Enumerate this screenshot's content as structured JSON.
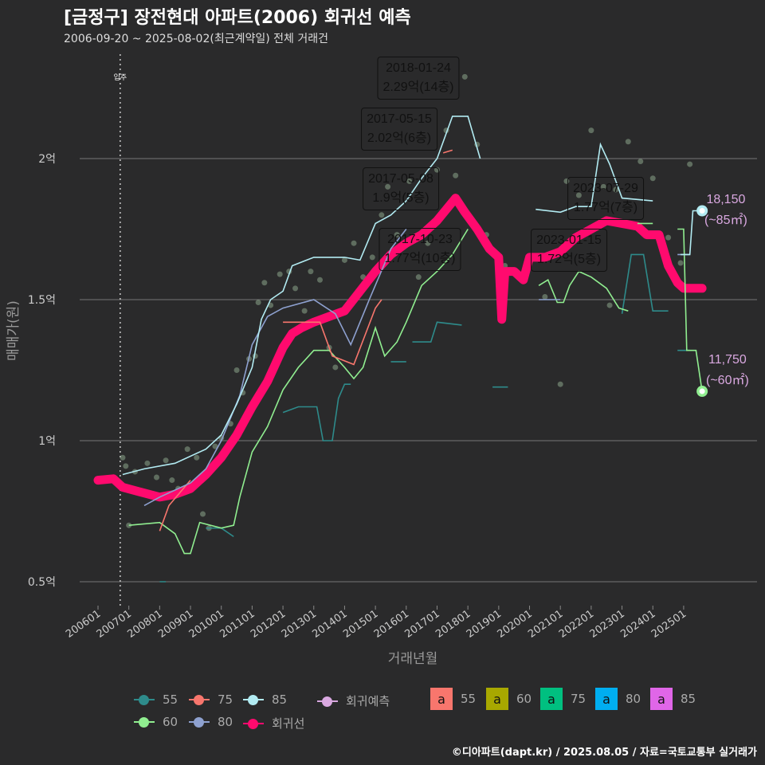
{
  "title": "[금정구] 장전현대 아파트(2006) 회귀선 예측",
  "subtitle": "2006-09-20 ~ 2025-08-02(최근계약일) 전체 거래건",
  "credit": "©디아파트(dapt.kr) / 2025.08.05 / 자료=국토교통부 실거래가",
  "chart_data": {
    "type": "line",
    "xlabel": "거래년월",
    "ylabel": "매매가(원)",
    "xlim": [
      2005.4,
      2027.4
    ],
    "ylim": [
      4200,
      24000
    ],
    "x_ticks": [
      "200601",
      "200701",
      "200801",
      "200901",
      "201001",
      "201101",
      "201201",
      "201301",
      "201401",
      "201501",
      "201601",
      "201701",
      "201801",
      "201901",
      "202001",
      "202101",
      "202201",
      "202301",
      "202401",
      "202501"
    ],
    "y_ticks": [
      {
        "v": 5000,
        "label": "0.5억"
      },
      {
        "v": 10000,
        "label": "1억"
      },
      {
        "v": 15000,
        "label": "1.5억"
      },
      {
        "v": 20000,
        "label": "2억"
      }
    ],
    "move_in": {
      "x": 2006.72,
      "label": "입주"
    },
    "series": [
      {
        "name": "55",
        "color": "#2e8b8b",
        "points": [
          [
            2008.0,
            5000
          ],
          [
            2008.2,
            5000
          ],
          null,
          [
            2009.5,
            6900
          ],
          [
            2010.0,
            6900
          ],
          [
            2010.4,
            6600
          ],
          null,
          [
            2012.0,
            11000
          ],
          [
            2012.5,
            11200
          ],
          [
            2013.1,
            11200
          ],
          [
            2013.3,
            10000
          ],
          [
            2013.6,
            10000
          ],
          [
            2013.8,
            11500
          ],
          [
            2014.0,
            12000
          ],
          [
            2014.2,
            12000
          ],
          null,
          [
            2015.5,
            12800
          ],
          [
            2016.0,
            12800
          ],
          null,
          [
            2016.2,
            13500
          ],
          [
            2016.8,
            13500
          ],
          [
            2017.0,
            14200
          ],
          [
            2017.8,
            14100
          ],
          null,
          [
            2018.8,
            11900
          ],
          [
            2019.3,
            11900
          ],
          null,
          [
            2023.0,
            14500
          ],
          [
            2023.3,
            16600
          ],
          [
            2023.7,
            16600
          ],
          [
            2024.0,
            14600
          ],
          [
            2024.5,
            14600
          ],
          null,
          [
            2024.8,
            13200
          ],
          [
            2025.2,
            13200
          ]
        ]
      },
      {
        "name": "60",
        "color": "#90ee90",
        "points": [
          [
            2007.0,
            7000
          ],
          [
            2008.0,
            7100
          ],
          [
            2008.5,
            6700
          ],
          [
            2008.8,
            6000
          ],
          [
            2009.0,
            6000
          ],
          [
            2009.3,
            7100
          ],
          [
            2010.0,
            6900
          ],
          [
            2010.4,
            7000
          ],
          [
            2010.6,
            8000
          ],
          [
            2011.0,
            9600
          ],
          [
            2011.5,
            10500
          ],
          [
            2012.0,
            11800
          ],
          [
            2012.5,
            12600
          ],
          [
            2013.0,
            13200
          ],
          [
            2013.5,
            13200
          ],
          [
            2014.0,
            12600
          ],
          [
            2014.3,
            12200
          ],
          [
            2014.6,
            12600
          ],
          [
            2015.0,
            14000
          ],
          [
            2015.3,
            13000
          ],
          [
            2015.7,
            13500
          ],
          [
            2016.0,
            14200
          ],
          [
            2016.5,
            15500
          ],
          [
            2017.0,
            16000
          ],
          [
            2017.5,
            16600
          ],
          [
            2018.0,
            17500
          ],
          null,
          [
            2020.3,
            15500
          ],
          [
            2020.6,
            15700
          ],
          [
            2020.9,
            14900
          ],
          [
            2021.1,
            14900
          ],
          [
            2021.3,
            15500
          ],
          [
            2021.6,
            16000
          ],
          [
            2022.0,
            15800
          ],
          [
            2022.5,
            15400
          ],
          [
            2022.9,
            14700
          ],
          [
            2023.2,
            14600
          ],
          null,
          [
            2023.5,
            17700
          ],
          [
            2024.0,
            17700
          ],
          null,
          [
            2024.8,
            17500
          ],
          [
            2025.0,
            17500
          ],
          [
            2025.1,
            13200
          ],
          [
            2025.4,
            13200
          ],
          [
            2025.6,
            11750
          ]
        ]
      },
      {
        "name": "75",
        "color": "#f8766d",
        "points": [
          [
            2008.0,
            6800
          ],
          [
            2008.3,
            7700
          ],
          [
            2009.0,
            8600
          ],
          null,
          [
            2012.0,
            14200
          ],
          [
            2013.2,
            14200
          ],
          [
            2013.6,
            13000
          ],
          [
            2014.3,
            12700
          ],
          [
            2015.0,
            14700
          ],
          [
            2015.2,
            15000
          ],
          null,
          [
            2017.2,
            20200
          ],
          [
            2017.5,
            20300
          ]
        ]
      },
      {
        "name": "80",
        "color": "#8ea1d0",
        "points": [
          [
            2007.5,
            7700
          ],
          [
            2008.0,
            8000
          ],
          [
            2009.0,
            8500
          ],
          [
            2009.5,
            9000
          ],
          [
            2010.0,
            10000
          ],
          [
            2010.6,
            11600
          ],
          [
            2011.0,
            13400
          ],
          [
            2011.5,
            14400
          ],
          [
            2012.0,
            14700
          ],
          [
            2013.0,
            15000
          ],
          [
            2013.7,
            14500
          ],
          [
            2014.2,
            13400
          ],
          [
            2014.8,
            15000
          ],
          [
            2015.5,
            16800
          ],
          [
            2016.0,
            17500
          ],
          null,
          [
            2020.3,
            15000
          ],
          [
            2021.0,
            15000
          ],
          null,
          [
            2024.8,
            16600
          ],
          [
            2025.2,
            16600
          ]
        ]
      },
      {
        "name": "85",
        "color": "#b2ebf2",
        "points": [
          [
            2006.8,
            8800
          ],
          [
            2007.5,
            9000
          ],
          [
            2008.5,
            9200
          ],
          [
            2009.5,
            9700
          ],
          [
            2010.0,
            10200
          ],
          [
            2010.5,
            11300
          ],
          [
            2011.0,
            12600
          ],
          [
            2011.3,
            14300
          ],
          [
            2011.6,
            15000
          ],
          [
            2012.0,
            15300
          ],
          [
            2012.3,
            16200
          ],
          [
            2013.0,
            16500
          ],
          [
            2014.0,
            16500
          ],
          [
            2014.5,
            16400
          ],
          [
            2015.0,
            17700
          ],
          [
            2015.5,
            18000
          ],
          [
            2016.0,
            18500
          ],
          [
            2016.5,
            19300
          ],
          [
            2017.0,
            20000
          ],
          [
            2017.5,
            21500
          ],
          [
            2018.0,
            21500
          ],
          [
            2018.4,
            20000
          ],
          null,
          [
            2020.2,
            18200
          ],
          [
            2021.0,
            18100
          ],
          [
            2021.5,
            18300
          ],
          [
            2022.0,
            18300
          ],
          [
            2022.3,
            20500
          ],
          [
            2022.6,
            19800
          ],
          [
            2023.0,
            18600
          ],
          [
            2024.0,
            18500
          ],
          null,
          [
            2024.9,
            16600
          ],
          [
            2025.2,
            16600
          ],
          [
            2025.3,
            18150
          ],
          [
            2025.6,
            18150
          ]
        ]
      }
    ],
    "regression": {
      "name": "회귀선",
      "color": "#ff0a6e",
      "points": [
        [
          2006.0,
          8600
        ],
        [
          2006.5,
          8650
        ],
        [
          2006.8,
          8350
        ],
        [
          2007.3,
          8200
        ],
        [
          2008.0,
          8000
        ],
        [
          2008.5,
          8100
        ],
        [
          2009.0,
          8300
        ],
        [
          2009.5,
          8800
        ],
        [
          2010.0,
          9400
        ],
        [
          2010.5,
          10200
        ],
        [
          2011.0,
          11200
        ],
        [
          2011.5,
          12100
        ],
        [
          2012.0,
          13300
        ],
        [
          2012.3,
          13800
        ],
        [
          2012.6,
          14000
        ],
        [
          2013.0,
          14200
        ],
        [
          2013.5,
          14400
        ],
        [
          2014.0,
          14600
        ],
        [
          2014.5,
          15300
        ],
        [
          2015.0,
          16000
        ],
        [
          2015.5,
          16600
        ],
        [
          2016.0,
          17000
        ],
        [
          2016.5,
          17300
        ],
        [
          2017.0,
          17800
        ],
        [
          2017.6,
          18600
        ],
        [
          2017.9,
          18100
        ],
        [
          2018.3,
          17500
        ],
        [
          2018.7,
          16800
        ],
        [
          2019.0,
          16500
        ],
        [
          2019.1,
          14300
        ],
        [
          2019.2,
          16000
        ],
        [
          2019.5,
          16000
        ],
        [
          2019.8,
          15700
        ],
        [
          2020.0,
          16500
        ],
        [
          2020.5,
          16500
        ],
        [
          2021.0,
          16700
        ],
        [
          2021.5,
          17200
        ],
        [
          2022.0,
          17500
        ],
        [
          2022.5,
          17800
        ],
        [
          2023.0,
          17700
        ],
        [
          2023.5,
          17600
        ],
        [
          2023.8,
          17300
        ],
        [
          2024.2,
          17300
        ],
        [
          2024.5,
          16200
        ],
        [
          2024.8,
          15600
        ],
        [
          2025.0,
          15400
        ],
        [
          2025.6,
          15400
        ]
      ]
    },
    "predictions": [
      {
        "area": "85",
        "x": 2025.6,
        "value": 18150,
        "label": "18,150",
        "sub": "(~85㎡)",
        "color": "#b2ebf2"
      },
      {
        "area": "60",
        "x": 2025.6,
        "value": 11750,
        "label": "11,750",
        "sub": "(~60㎡)",
        "color": "#90ee90"
      }
    ],
    "scatter": [
      [
        2006.8,
        9400
      ],
      [
        2006.9,
        9100
      ],
      [
        2007.0,
        7000
      ],
      [
        2007.2,
        8900
      ],
      [
        2007.6,
        9200
      ],
      [
        2007.9,
        8700
      ],
      [
        2008.2,
        9300
      ],
      [
        2008.4,
        8600
      ],
      [
        2008.6,
        8300
      ],
      [
        2008.9,
        9700
      ],
      [
        2009.2,
        9400
      ],
      [
        2009.4,
        7400
      ],
      [
        2009.6,
        6900
      ],
      [
        2009.8,
        9800
      ],
      [
        2010.0,
        10100
      ],
      [
        2010.3,
        10600
      ],
      [
        2010.5,
        12500
      ],
      [
        2010.7,
        11700
      ],
      [
        2010.9,
        12900
      ],
      [
        2011.1,
        13000
      ],
      [
        2011.2,
        14900
      ],
      [
        2011.4,
        15600
      ],
      [
        2011.6,
        14800
      ],
      [
        2011.9,
        15900
      ],
      [
        2012.2,
        16000
      ],
      [
        2012.4,
        15400
      ],
      [
        2012.7,
        14600
      ],
      [
        2012.9,
        16000
      ],
      [
        2013.2,
        15700
      ],
      [
        2013.5,
        13300
      ],
      [
        2013.7,
        12600
      ],
      [
        2014.0,
        16400
      ],
      [
        2014.3,
        17000
      ],
      [
        2014.6,
        15800
      ],
      [
        2014.9,
        16500
      ],
      [
        2015.2,
        18000
      ],
      [
        2015.4,
        19000
      ],
      [
        2015.7,
        17300
      ],
      [
        2016.1,
        19200
      ],
      [
        2016.4,
        15800
      ],
      [
        2016.7,
        17000
      ],
      [
        2017.0,
        19600
      ],
      [
        2017.3,
        21000
      ],
      [
        2017.6,
        19400
      ],
      [
        2017.9,
        22900
      ],
      [
        2018.3,
        20500
      ],
      [
        2018.6,
        17300
      ],
      [
        2019.2,
        16200
      ],
      [
        2020.5,
        15100
      ],
      [
        2021.0,
        12000
      ],
      [
        2021.2,
        19200
      ],
      [
        2021.6,
        18700
      ],
      [
        2022.0,
        21000
      ],
      [
        2022.4,
        19000
      ],
      [
        2022.6,
        14800
      ],
      [
        2022.8,
        18900
      ],
      [
        2023.2,
        20600
      ],
      [
        2023.6,
        19900
      ],
      [
        2024.0,
        19300
      ],
      [
        2024.5,
        17200
      ],
      [
        2024.9,
        16300
      ],
      [
        2025.2,
        19800
      ]
    ],
    "annotations": [
      {
        "date": "2018-01-24",
        "price": "2.29억(14층)",
        "area": "85",
        "color": "#e066e8"
      },
      {
        "date": "2017-05-15",
        "price": "2.02억(6층)",
        "area": "75",
        "color": "#00c080"
      },
      {
        "date": "2017-05-08",
        "price": "1.9억(5층)",
        "area": "80",
        "color": "#00aef0"
      },
      {
        "date": "2017-10-23",
        "price": "1.77억(10층)",
        "area": "60",
        "color": "#a8a800"
      },
      {
        "date": "2023-07-29",
        "price": "1.77억(7층)",
        "area": "60",
        "color": "#a8a800"
      },
      {
        "date": "2023-01-15",
        "price": "1.72억(5층)",
        "area": "55",
        "color": "#f8766d"
      }
    ]
  },
  "legend": {
    "lines": [
      {
        "label": "55",
        "color": "#2e8b8b"
      },
      {
        "label": "75",
        "color": "#f8766d"
      },
      {
        "label": "85",
        "color": "#b2ebf2"
      },
      {
        "label": "회귀예측",
        "color": "#d9a8e0"
      },
      {
        "label": "60",
        "color": "#90ee90"
      },
      {
        "label": "80",
        "color": "#8ea1d0"
      },
      {
        "label": "회귀선",
        "color": "#ff0a6e"
      }
    ],
    "boxes_glyph": "a",
    "boxes": [
      {
        "label": "55",
        "color": "#f8766d"
      },
      {
        "label": "60",
        "color": "#a8a800"
      },
      {
        "label": "75",
        "color": "#00c080"
      },
      {
        "label": "80",
        "color": "#00aef0"
      },
      {
        "label": "85",
        "color": "#e066e8"
      }
    ]
  }
}
